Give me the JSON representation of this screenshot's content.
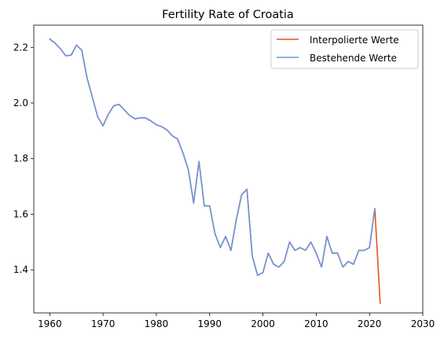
{
  "chart_data": {
    "type": "line",
    "title": "Fertility Rate of Croatia",
    "xlabel": "",
    "ylabel": "",
    "xlim": [
      1957.0,
      2030.0
    ],
    "ylim": [
      1.245,
      2.28
    ],
    "xticks": [
      1960,
      1970,
      1980,
      1990,
      2000,
      2010,
      2020,
      2030
    ],
    "yticks": [
      1.4,
      1.6,
      1.8,
      2.0,
      2.2
    ],
    "grid": false,
    "legend_position": "top-right",
    "series": [
      {
        "name": "Interpolierte Werte",
        "color": "#e8541c",
        "x": [
          1960,
          1961,
          1962,
          1963,
          1964,
          1965,
          1966,
          1967,
          1968,
          1969,
          1970,
          1971,
          1972,
          1973,
          1974,
          1975,
          1976,
          1977,
          1978,
          1979,
          1980,
          1981,
          1982,
          1983,
          1984,
          1985,
          1986,
          1987,
          1988,
          1989,
          1990,
          1991,
          1992,
          1993,
          1994,
          1995,
          1996,
          1997,
          1998,
          1999,
          2000,
          2001,
          2002,
          2003,
          2004,
          2005,
          2006,
          2007,
          2008,
          2009,
          2010,
          2011,
          2012,
          2013,
          2014,
          2015,
          2016,
          2017,
          2018,
          2019,
          2020,
          2021,
          2022
        ],
        "values": [
          2.23,
          2.215,
          2.195,
          2.17,
          2.172,
          2.208,
          2.19,
          2.09,
          2.02,
          1.95,
          1.918,
          1.96,
          1.99,
          1.995,
          1.975,
          1.955,
          1.943,
          1.947,
          1.946,
          1.935,
          1.922,
          1.915,
          1.903,
          1.882,
          1.87,
          1.82,
          1.76,
          1.64,
          1.79,
          1.63,
          1.63,
          1.53,
          1.48,
          1.52,
          1.47,
          1.58,
          1.67,
          1.69,
          1.45,
          1.38,
          1.39,
          1.46,
          1.42,
          1.41,
          1.43,
          1.5,
          1.47,
          1.48,
          1.47,
          1.5,
          1.46,
          1.41,
          1.52,
          1.46,
          1.46,
          1.41,
          1.43,
          1.42,
          1.47,
          1.47,
          1.48,
          1.62,
          1.28
        ]
      },
      {
        "name": "Bestehende Werte",
        "color": "#6b96dc",
        "x": [
          1960,
          1961,
          1962,
          1963,
          1964,
          1965,
          1966,
          1967,
          1968,
          1969,
          1970,
          1971,
          1972,
          1973,
          1974,
          1975,
          1976,
          1977,
          1978,
          1979,
          1980,
          1981,
          1982,
          1983,
          1984,
          1985,
          1986,
          1987,
          1988,
          1989,
          1990,
          1991,
          1992,
          1993,
          1994,
          1995,
          1996,
          1997,
          1998,
          1999,
          2000,
          2001,
          2002,
          2003,
          2004,
          2005,
          2006,
          2007,
          2008,
          2009,
          2010,
          2011,
          2012,
          2013,
          2014,
          2015,
          2016,
          2017,
          2018,
          2019,
          2020,
          2021
        ],
        "values": [
          2.23,
          2.215,
          2.195,
          2.17,
          2.172,
          2.208,
          2.19,
          2.09,
          2.02,
          1.95,
          1.918,
          1.96,
          1.99,
          1.995,
          1.975,
          1.955,
          1.943,
          1.947,
          1.946,
          1.935,
          1.922,
          1.915,
          1.903,
          1.882,
          1.87,
          1.82,
          1.76,
          1.64,
          1.79,
          1.63,
          1.63,
          1.53,
          1.48,
          1.52,
          1.47,
          1.58,
          1.67,
          1.69,
          1.45,
          1.38,
          1.39,
          1.46,
          1.42,
          1.41,
          1.43,
          1.5,
          1.47,
          1.48,
          1.47,
          1.5,
          1.46,
          1.41,
          1.52,
          1.46,
          1.46,
          1.41,
          1.43,
          1.42,
          1.47,
          1.47,
          1.48,
          1.62
        ]
      }
    ]
  }
}
